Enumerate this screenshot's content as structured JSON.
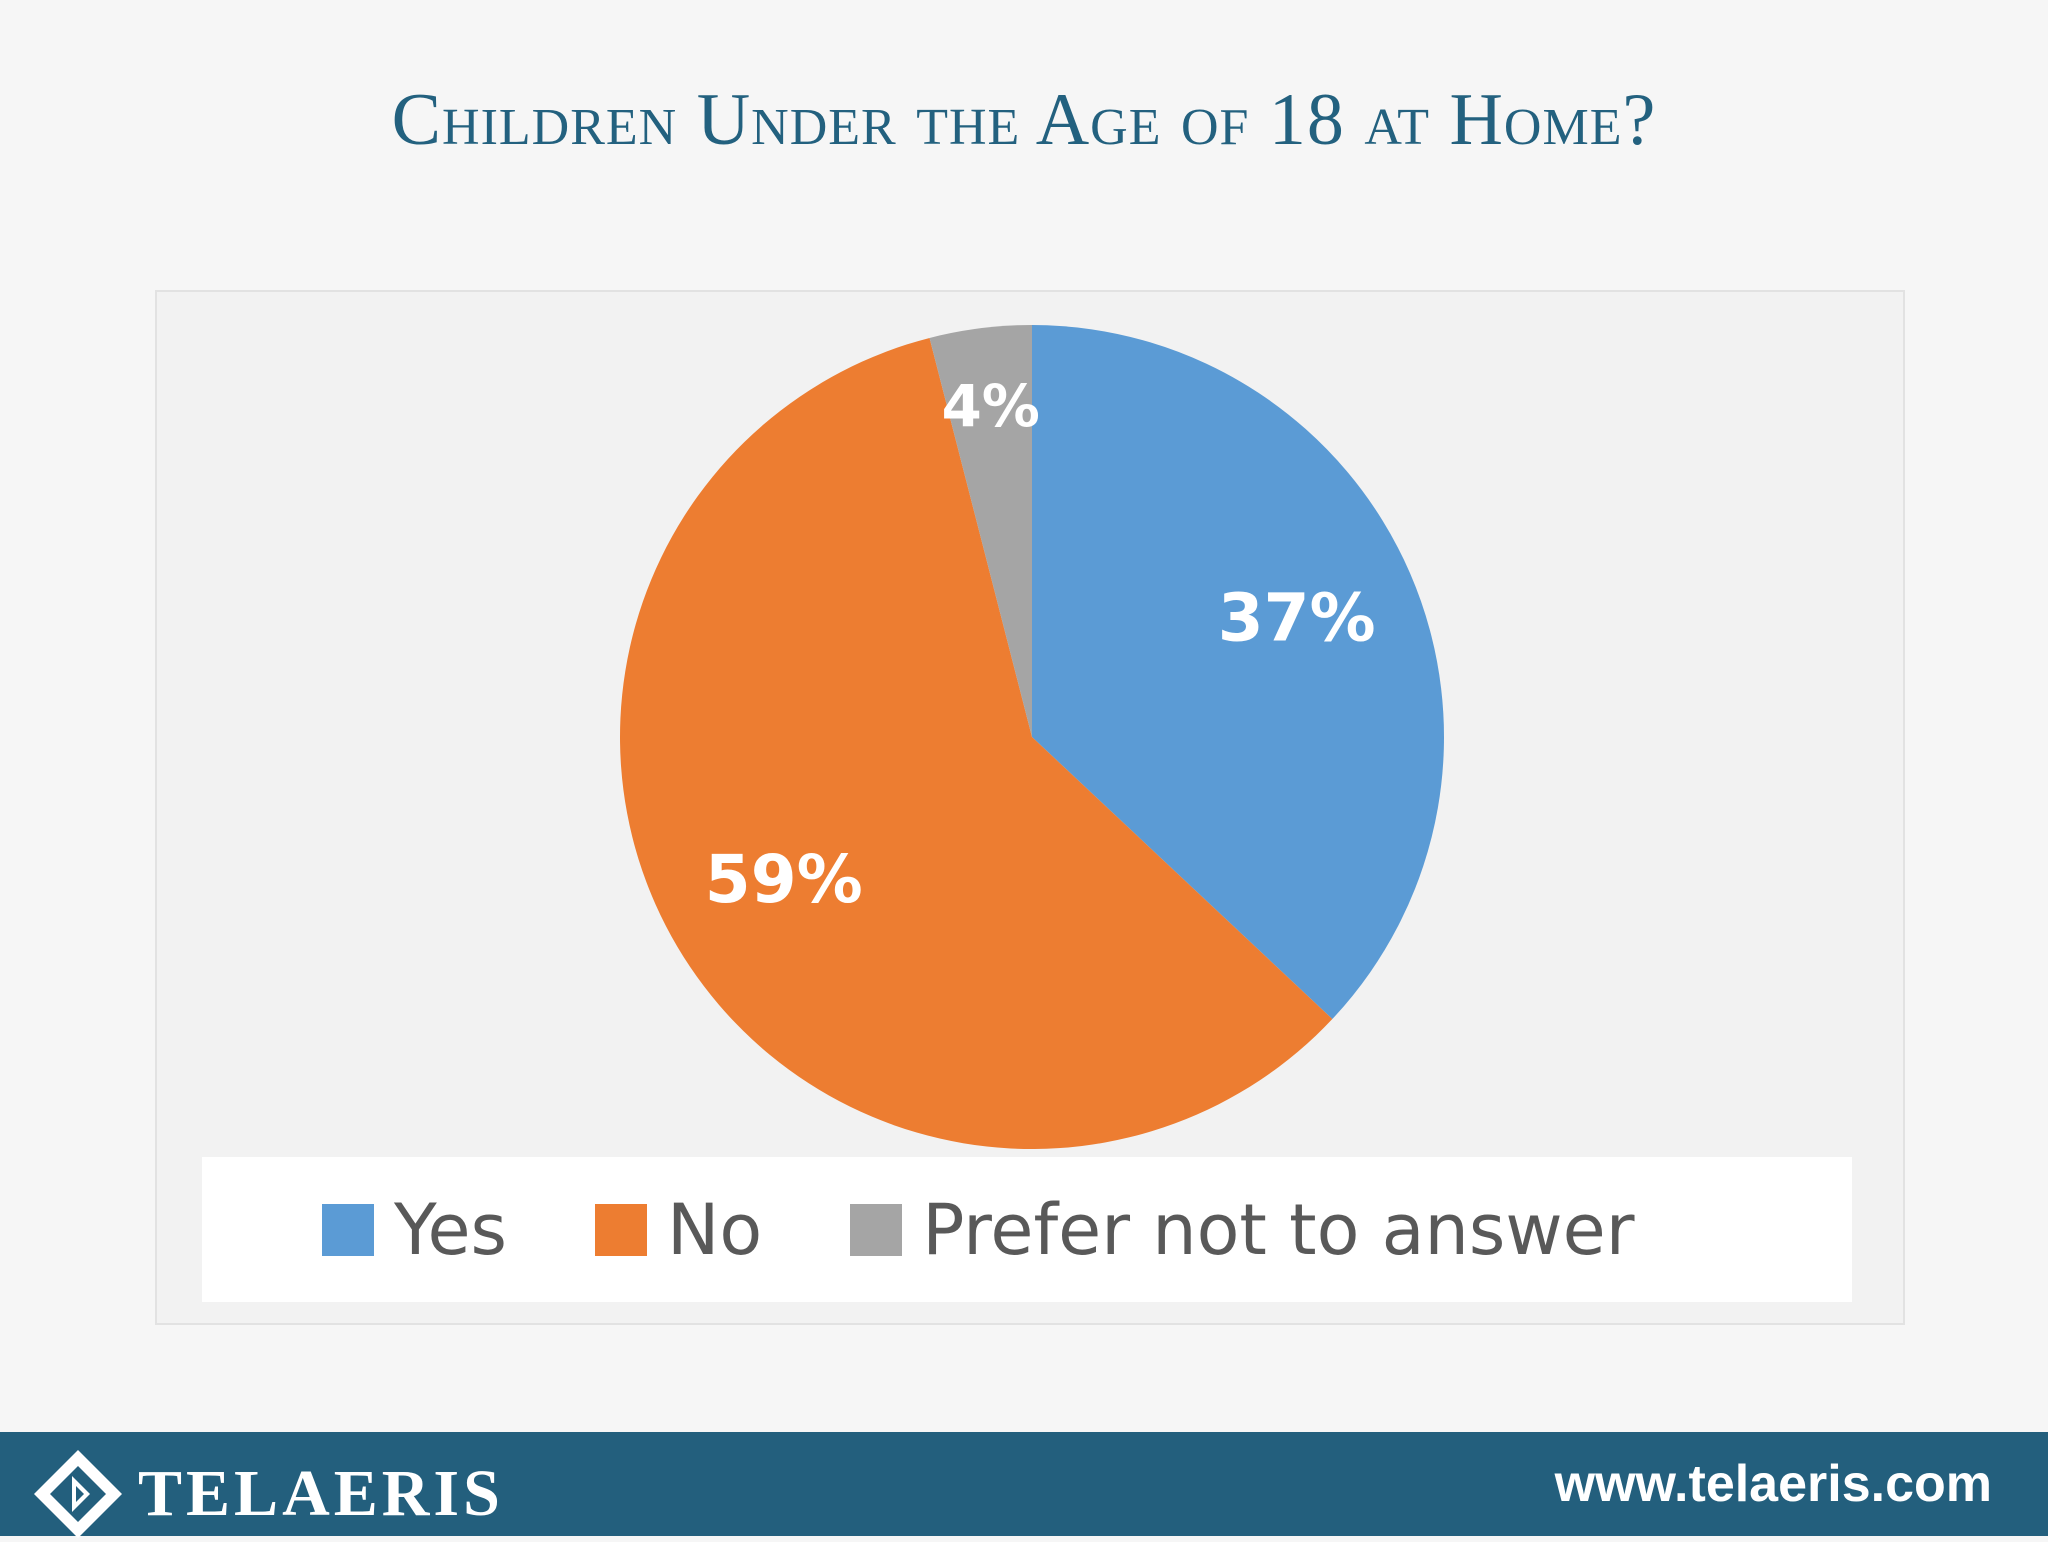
{
  "title": "Children Under the Age of  18 at Home?",
  "chart_data": {
    "type": "pie",
    "title": "",
    "slices": [
      {
        "label": "Yes",
        "value": 37,
        "display": "37%",
        "color": "#5b9bd5"
      },
      {
        "label": "No",
        "value": 59,
        "display": "59%",
        "color": "#ed7d31"
      },
      {
        "label": "Prefer not to answer",
        "value": 4,
        "display": "4%",
        "color": "#a5a5a5"
      }
    ],
    "legend_position": "bottom"
  },
  "footer": {
    "brand": "TELAERIS",
    "url": "www.telaeris.com"
  },
  "icons": {
    "logo": "telaeris-diamond-logo"
  }
}
